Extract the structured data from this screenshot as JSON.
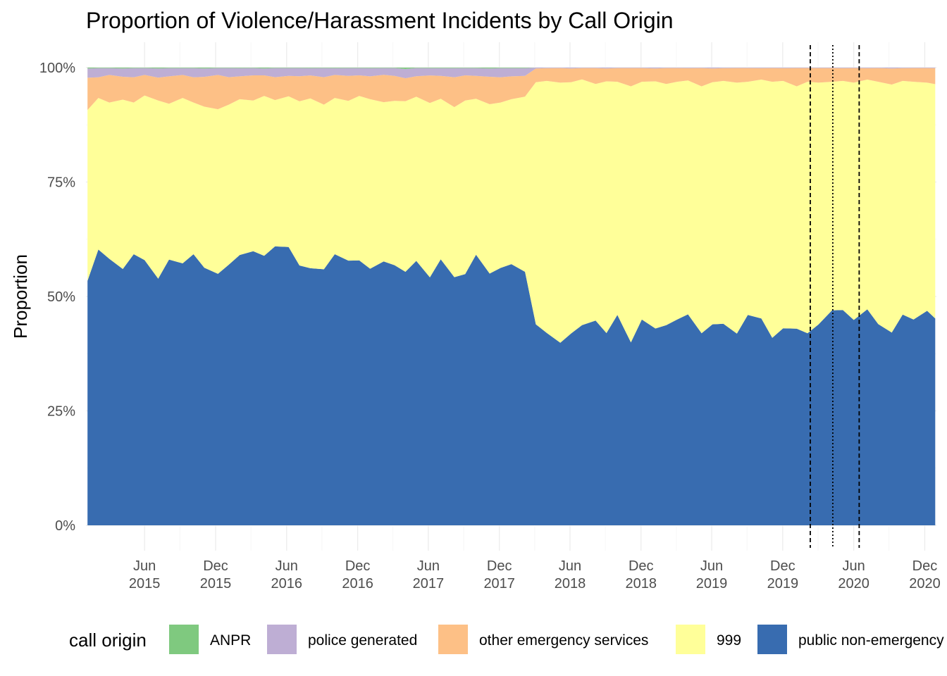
{
  "chart_data": {
    "type": "area",
    "stacked": true,
    "normalized": true,
    "title": "Proportion of Violence/Harassment Incidents by Call Origin",
    "xlabel": "",
    "ylabel": "Proportion",
    "y_range": [
      0,
      1
    ],
    "y_ticks": [
      {
        "value": 0,
        "label": "0%"
      },
      {
        "value": 0.25,
        "label": "25%"
      },
      {
        "value": 0.5,
        "label": "50%"
      },
      {
        "value": 0.75,
        "label": "75%"
      },
      {
        "value": 1,
        "label": "100%"
      }
    ],
    "x_range": [
      "2015-01-01",
      "2020-12-31"
    ],
    "x_ticks": [
      {
        "date": "2015-06-01",
        "month": "Jun",
        "year": "2015"
      },
      {
        "date": "2015-12-01",
        "month": "Dec",
        "year": "2015"
      },
      {
        "date": "2016-06-01",
        "month": "Jun",
        "year": "2016"
      },
      {
        "date": "2016-12-01",
        "month": "Dec",
        "year": "2016"
      },
      {
        "date": "2017-06-01",
        "month": "Jun",
        "year": "2017"
      },
      {
        "date": "2017-12-01",
        "month": "Dec",
        "year": "2017"
      },
      {
        "date": "2018-06-01",
        "month": "Jun",
        "year": "2018"
      },
      {
        "date": "2018-12-01",
        "month": "Dec",
        "year": "2018"
      },
      {
        "date": "2019-06-01",
        "month": "Jun",
        "year": "2019"
      },
      {
        "date": "2019-12-01",
        "month": "Dec",
        "year": "2019"
      },
      {
        "date": "2020-06-01",
        "month": "Jun",
        "year": "2020"
      },
      {
        "date": "2020-12-01",
        "month": "Dec",
        "year": "2020"
      }
    ],
    "grid": true,
    "legend_position": "bottom",
    "legend_title": "call origin",
    "reference_lines": [
      {
        "date": "2020-02-10",
        "style": "dashed"
      },
      {
        "date": "2020-04-08",
        "style": "dotted"
      },
      {
        "date": "2020-06-15",
        "style": "dashed"
      }
    ],
    "x": [
      "2015-01-05",
      "2015-02-02",
      "2015-03-02",
      "2015-04-06",
      "2015-05-04",
      "2015-06-01",
      "2015-07-06",
      "2015-08-03",
      "2015-09-07",
      "2015-10-05",
      "2015-11-02",
      "2015-12-07",
      "2016-01-04",
      "2016-02-01",
      "2016-03-07",
      "2016-04-04",
      "2016-05-02",
      "2016-06-06",
      "2016-07-04",
      "2016-08-01",
      "2016-09-05",
      "2016-10-03",
      "2016-11-07",
      "2016-12-05",
      "2017-01-02",
      "2017-02-06",
      "2017-03-06",
      "2017-04-03",
      "2017-05-01",
      "2017-06-05",
      "2017-07-03",
      "2017-08-07",
      "2017-09-04",
      "2017-10-02",
      "2017-11-06",
      "2017-12-04",
      "2018-01-01",
      "2018-02-05",
      "2018-03-05",
      "2018-04-02",
      "2018-05-07",
      "2018-06-04",
      "2018-07-02",
      "2018-08-06",
      "2018-09-03",
      "2018-10-01",
      "2018-11-05",
      "2018-12-03",
      "2019-01-07",
      "2019-02-04",
      "2019-03-04",
      "2019-04-01",
      "2019-05-06",
      "2019-06-03",
      "2019-07-01",
      "2019-08-05",
      "2019-09-02",
      "2019-10-07",
      "2019-11-04",
      "2019-12-02",
      "2020-01-06",
      "2020-02-03",
      "2020-03-02",
      "2020-04-06",
      "2020-05-04",
      "2020-06-01",
      "2020-07-06",
      "2020-08-03",
      "2020-09-07",
      "2020-10-05",
      "2020-11-02",
      "2020-12-07",
      "2020-12-28"
    ],
    "series": [
      {
        "name": "ANPR",
        "color": "#7fc97f",
        "values": [
          0.002,
          0.001,
          0.001,
          0.002,
          0.001,
          0.001,
          0.002,
          0.001,
          0.001,
          0.001,
          0.002,
          0.001,
          0.001,
          0.001,
          0.001,
          0.002,
          0.001,
          0.001,
          0.001,
          0.001,
          0.001,
          0.001,
          0.001,
          0.001,
          0.001,
          0.001,
          0.001,
          0.003,
          0.001,
          0.001,
          0.001,
          0.001,
          0.001,
          0.001,
          0.002,
          0.001,
          0.001,
          0.001,
          0,
          0,
          0,
          0,
          0,
          0,
          0,
          0,
          0,
          0,
          0,
          0,
          0,
          0,
          0,
          0,
          0,
          0,
          0,
          0,
          0,
          0,
          0,
          0,
          0,
          0,
          0,
          0,
          0,
          0,
          0,
          0,
          0,
          0,
          0
        ]
      },
      {
        "name": "police generated",
        "color": "#beaed4",
        "values": [
          0.02,
          0.02,
          0.015,
          0.018,
          0.02,
          0.015,
          0.02,
          0.018,
          0.015,
          0.02,
          0.018,
          0.015,
          0.02,
          0.018,
          0.016,
          0.015,
          0.02,
          0.017,
          0.018,
          0.016,
          0.02,
          0.015,
          0.017,
          0.016,
          0.018,
          0.015,
          0.017,
          0.02,
          0.018,
          0.016,
          0.017,
          0.02,
          0.016,
          0.017,
          0.018,
          0.02,
          0.018,
          0.017,
          0.002,
          0.001,
          0.001,
          0.002,
          0.001,
          0.001,
          0.002,
          0.001,
          0.001,
          0.001,
          0.002,
          0.001,
          0.001,
          0.001,
          0.001,
          0.002,
          0.001,
          0.001,
          0.001,
          0.001,
          0.001,
          0.001,
          0.001,
          0.001,
          0.001,
          0.001,
          0.001,
          0.001,
          0.001,
          0.001,
          0.002,
          0.001,
          0.001,
          0.001,
          0.001
        ]
      },
      {
        "name": "other emergency services",
        "color": "#fdc086",
        "values": [
          0.07,
          0.045,
          0.06,
          0.05,
          0.055,
          0.045,
          0.05,
          0.06,
          0.05,
          0.055,
          0.065,
          0.075,
          0.06,
          0.05,
          0.055,
          0.045,
          0.05,
          0.045,
          0.055,
          0.05,
          0.06,
          0.05,
          0.055,
          0.045,
          0.05,
          0.06,
          0.055,
          0.05,
          0.045,
          0.06,
          0.05,
          0.065,
          0.055,
          0.05,
          0.06,
          0.055,
          0.05,
          0.045,
          0.03,
          0.028,
          0.032,
          0.03,
          0.025,
          0.035,
          0.028,
          0.03,
          0.04,
          0.03,
          0.028,
          0.035,
          0.03,
          0.027,
          0.04,
          0.03,
          0.028,
          0.032,
          0.03,
          0.025,
          0.03,
          0.028,
          0.04,
          0.03,
          0.032,
          0.03,
          0.028,
          0.032,
          0.025,
          0.03,
          0.035,
          0.028,
          0.03,
          0.032,
          0.035
        ]
      },
      {
        "name": "999",
        "color": "#ffff99",
        "values": [
          0.37,
          0.33,
          0.34,
          0.37,
          0.33,
          0.36,
          0.39,
          0.34,
          0.36,
          0.33,
          0.35,
          0.36,
          0.35,
          0.34,
          0.33,
          0.35,
          0.32,
          0.33,
          0.36,
          0.37,
          0.36,
          0.34,
          0.35,
          0.36,
          0.37,
          0.35,
          0.36,
          0.37,
          0.36,
          0.38,
          0.35,
          0.37,
          0.38,
          0.34,
          0.37,
          0.36,
          0.36,
          0.38,
          0.53,
          0.55,
          0.57,
          0.55,
          0.54,
          0.52,
          0.55,
          0.51,
          0.56,
          0.52,
          0.54,
          0.53,
          0.52,
          0.51,
          0.54,
          0.53,
          0.53,
          0.55,
          0.51,
          0.52,
          0.56,
          0.54,
          0.53,
          0.55,
          0.53,
          0.5,
          0.5,
          0.52,
          0.5,
          0.53,
          0.54,
          0.51,
          0.52,
          0.5,
          0.51
        ]
      },
      {
        "name": "public non-emergency",
        "color": "#386cb0",
        "values": [
          0.53,
          0.6,
          0.58,
          0.56,
          0.59,
          0.58,
          0.54,
          0.58,
          0.57,
          0.59,
          0.56,
          0.55,
          0.57,
          0.59,
          0.6,
          0.59,
          0.61,
          0.61,
          0.57,
          0.56,
          0.56,
          0.59,
          0.58,
          0.58,
          0.56,
          0.58,
          0.57,
          0.55,
          0.58,
          0.54,
          0.58,
          0.54,
          0.55,
          0.59,
          0.55,
          0.56,
          0.57,
          0.55,
          0.44,
          0.42,
          0.4,
          0.42,
          0.44,
          0.45,
          0.42,
          0.46,
          0.4,
          0.45,
          0.43,
          0.44,
          0.45,
          0.46,
          0.42,
          0.44,
          0.44,
          0.42,
          0.46,
          0.45,
          0.41,
          0.43,
          0.43,
          0.42,
          0.44,
          0.47,
          0.47,
          0.45,
          0.47,
          0.44,
          0.42,
          0.46,
          0.45,
          0.47,
          0.45
        ]
      }
    ]
  }
}
